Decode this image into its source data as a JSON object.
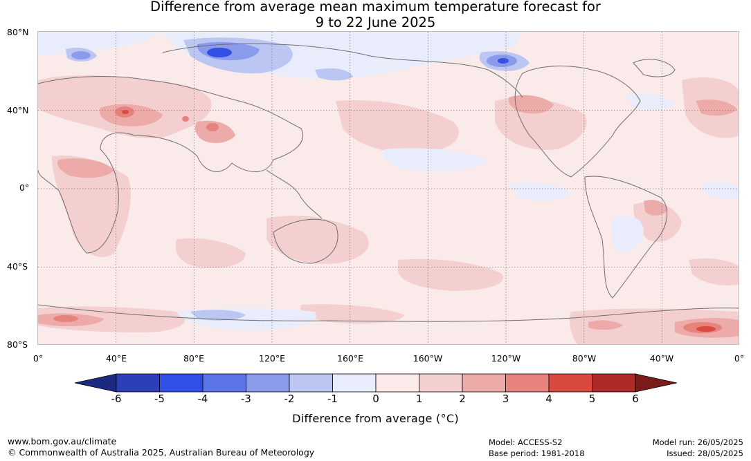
{
  "title": {
    "line1": "Difference from average mean maximum temperature forecast for",
    "line2": "9 to 22 June 2025"
  },
  "axes": {
    "lat_labels": [
      "80°N",
      "40°N",
      "0°",
      "40°S",
      "80°S"
    ],
    "lon_labels": [
      "0°",
      "40°E",
      "80°E",
      "120°E",
      "160°E",
      "160°W",
      "120°W",
      "80°W",
      "40°W",
      "0°"
    ]
  },
  "colorbar": {
    "ticks": [
      "-6",
      "-5",
      "-4",
      "-3",
      "-2",
      "-1",
      "0",
      "1",
      "2",
      "3",
      "4",
      "5",
      "6"
    ],
    "colors": [
      "#1b2a7e",
      "#2c3fb8",
      "#3350e6",
      "#5b74e6",
      "#8a9bec",
      "#bcc6f2",
      "#e9ecfb",
      "#fbeaea",
      "#f4cfcf",
      "#ecaaa8",
      "#e6837d",
      "#d9493f",
      "#ac2a27",
      "#7a1d1a"
    ],
    "label": "Difference from average (°C)"
  },
  "footer": {
    "website": "www.bom.gov.au/climate",
    "copyright": "© Commonwealth of Australia 2025, Australian Bureau of Meteorology",
    "model": "Model: ACCESS-S2",
    "base_period": "Base period: 1981-2018",
    "model_run": "Model run: 26/05/2025",
    "issued": "Issued: 28/05/2025"
  }
}
